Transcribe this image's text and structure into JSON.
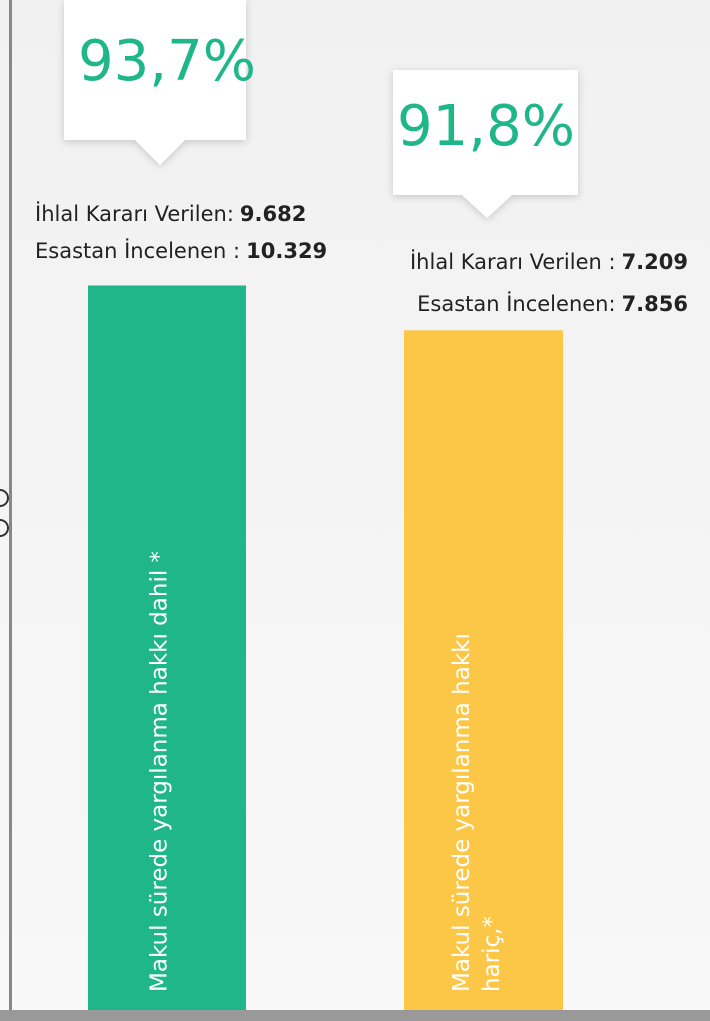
{
  "chart_data": {
    "type": "bar",
    "categories": [
      "Makul sürede yargılanma hakkı  dahil *",
      "Makul sürede yargılanma hakkı hariç,*"
    ],
    "values": [
      93.7,
      91.8
    ],
    "value_labels": [
      "93,7%",
      "91,8%"
    ],
    "colors": [
      "#1fb78a",
      "#fcc746"
    ],
    "annotations": [
      [
        {
          "label": "İhlal Kararı Verilen:",
          "number": "9.682"
        },
        {
          "label": "Esastan İncelenen :",
          "number": "10.329"
        }
      ],
      [
        {
          "label": "İhlal Kararı Verilen :",
          "number": "7.209"
        },
        {
          "label": "Esastan İncelenen:",
          "number": "7.856"
        }
      ]
    ]
  }
}
